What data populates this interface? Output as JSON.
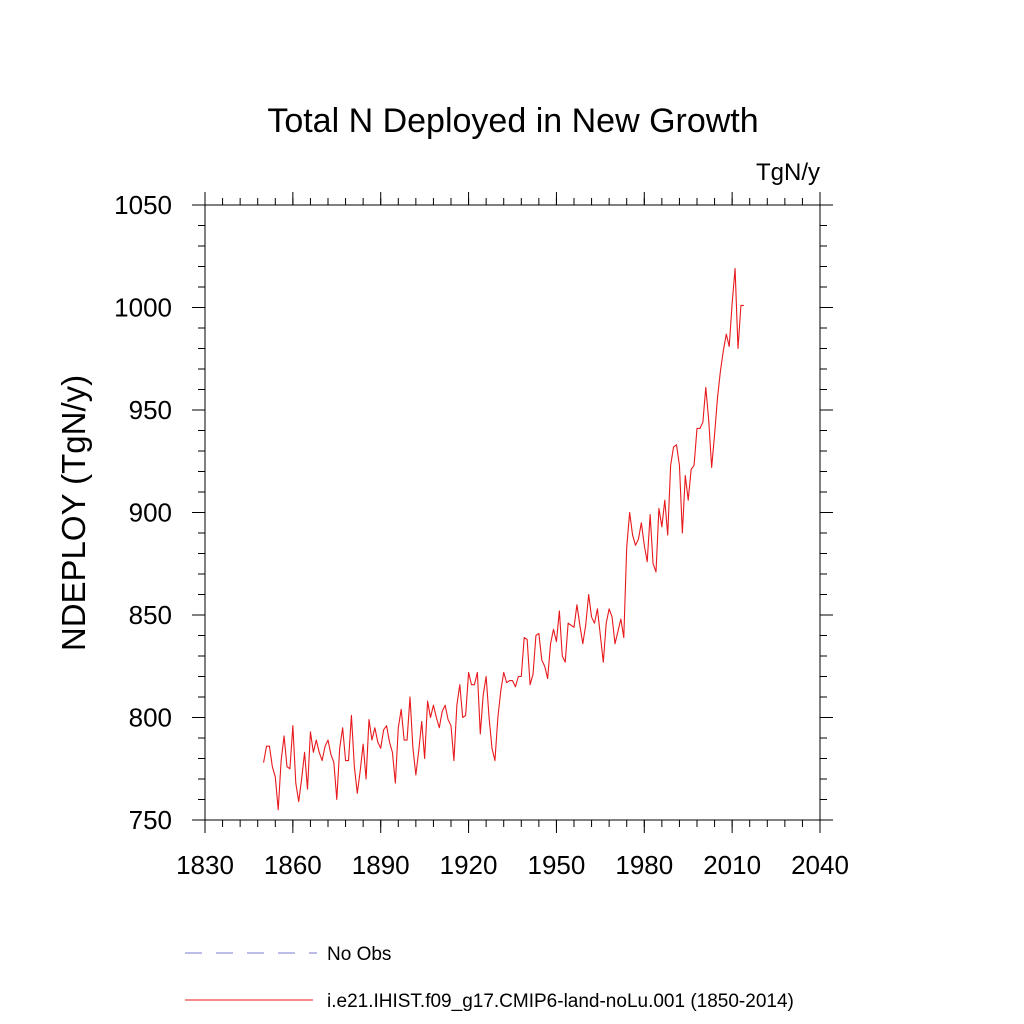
{
  "chart_data": {
    "type": "line",
    "title": "Total N Deployed in New Growth",
    "units_label": "TgN/y",
    "xlabel": "",
    "ylabel": "NDEPLOY  (TgN/y)",
    "xlim": [
      1830,
      2040
    ],
    "ylim": [
      750,
      1050
    ],
    "xticks": [
      "1830",
      "1860",
      "1890",
      "1920",
      "1950",
      "1980",
      "2010",
      "2040"
    ],
    "yticks": [
      "750",
      "800",
      "850",
      "900",
      "950",
      "1000",
      "1050"
    ],
    "grid": false,
    "legend_position": "bottom",
    "legend": [
      {
        "label": "No Obs",
        "color": "#7b7bd6",
        "style": "dashed"
      },
      {
        "label": "i.e21.IHIST.f09_g17.CMIP6-land-noLu.001 (1850-2014)",
        "color": "#e8191c",
        "style": "solid"
      }
    ],
    "series": [
      {
        "name": "i.e21.IHIST.f09_g17.CMIP6-land-noLu.001 (1850-2014)",
        "color": "#e8191c",
        "x_start": 1850,
        "x_step": 1,
        "values": [
          778,
          786,
          786,
          776,
          771,
          755,
          779,
          791,
          776,
          775,
          796,
          768,
          759,
          770,
          783,
          765,
          793,
          783,
          789,
          783,
          779,
          786,
          789,
          782,
          778,
          760,
          785,
          795,
          779,
          779,
          801,
          776,
          763,
          774,
          787,
          770,
          799,
          789,
          795,
          788,
          785,
          794,
          796,
          788,
          783,
          768,
          795,
          804,
          789,
          789,
          810,
          785,
          772,
          784,
          798,
          780,
          808,
          800,
          806,
          800,
          795,
          803,
          806,
          799,
          796,
          779,
          806,
          816,
          800,
          801,
          822,
          816,
          816,
          822,
          792,
          811,
          820,
          800,
          785,
          779,
          800,
          813,
          822,
          817,
          818,
          818,
          815,
          820,
          820,
          839,
          838,
          816,
          821,
          840,
          841,
          828,
          825,
          819,
          836,
          843,
          837,
          852,
          830,
          827,
          846,
          845,
          844,
          855,
          845,
          836,
          845,
          860,
          849,
          846,
          853,
          840,
          827,
          846,
          853,
          849,
          836,
          842,
          848,
          839,
          883,
          900,
          889,
          884,
          887,
          895,
          884,
          876,
          899,
          875,
          871,
          902,
          893,
          906,
          889,
          923,
          932,
          933,
          923,
          890,
          918,
          906,
          921,
          923,
          941,
          941,
          944,
          961,
          945,
          922,
          938,
          956,
          969,
          979,
          987,
          981,
          1002,
          1019,
          980,
          1001,
          1001
        ]
      }
    ]
  }
}
